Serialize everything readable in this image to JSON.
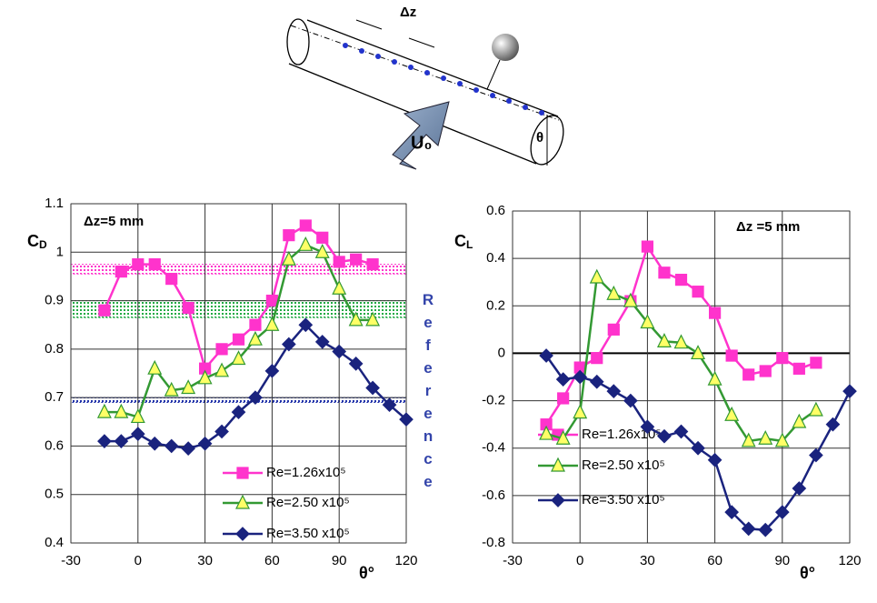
{
  "diagram": {
    "dz": "Δz",
    "velocity": "U₀",
    "angle": "θ"
  },
  "chart_data": [
    {
      "type": "line",
      "ylabel": {
        "main": "C",
        "sub": "D"
      },
      "xlabel": "θ°",
      "annotation": "Δz=5 mm",
      "side_note": "Reference",
      "xlim": [
        -30,
        120
      ],
      "xticks": [
        -30,
        0,
        30,
        60,
        90,
        120
      ],
      "ylim": [
        0.4,
        1.1
      ],
      "yticks": [
        0.4,
        0.5,
        0.6,
        0.7,
        0.8,
        0.9,
        1,
        1.1
      ],
      "grid": true,
      "bands": [
        {
          "color": "#ff33cc",
          "range": [
            0.955,
            0.975
          ]
        },
        {
          "color": "#22aa44",
          "range": [
            0.865,
            0.9
          ]
        },
        {
          "color": "#2233aa",
          "range": [
            0.69,
            0.7
          ]
        }
      ],
      "series": [
        {
          "name": "Re=1.26x10⁵",
          "color": "#ff33cc",
          "marker": "square",
          "marker_fill": "#ff33cc",
          "x": [
            -15,
            -7.5,
            0,
            7.5,
            15,
            22.5,
            30,
            37.5,
            45,
            52.5,
            60,
            67.5,
            75,
            82.5,
            90,
            97.5,
            105
          ],
          "values": [
            0.88,
            0.96,
            0.975,
            0.975,
            0.945,
            0.885,
            0.76,
            0.8,
            0.82,
            0.85,
            0.9,
            1.035,
            1.055,
            1.03,
            0.98,
            0.985,
            0.975
          ]
        },
        {
          "name": "Re=2.50 x10⁵",
          "color": "#339933",
          "marker": "triangle",
          "marker_fill": "#ffff66",
          "x": [
            -15,
            -7.5,
            0,
            7.5,
            15,
            22.5,
            30,
            37.5,
            45,
            52.5,
            60,
            67.5,
            75,
            82.5,
            90,
            97.5,
            105
          ],
          "values": [
            0.67,
            0.67,
            0.66,
            0.76,
            0.715,
            0.72,
            0.74,
            0.755,
            0.78,
            0.82,
            0.85,
            0.985,
            1.015,
            1.0,
            0.925,
            0.86,
            0.86
          ]
        },
        {
          "name": "Re=3.50 x10⁵",
          "color": "#1a237e",
          "marker": "diamond",
          "marker_fill": "#1a237e",
          "x": [
            -15,
            -7.5,
            0,
            7.5,
            15,
            22.5,
            30,
            37.5,
            45,
            52.5,
            60,
            67.5,
            75,
            82.5,
            90,
            97.5,
            105,
            112.5,
            120
          ],
          "values": [
            0.61,
            0.61,
            0.625,
            0.605,
            0.6,
            0.595,
            0.605,
            0.63,
            0.67,
            0.7,
            0.755,
            0.81,
            0.85,
            0.815,
            0.795,
            0.77,
            0.72,
            0.685,
            0.655
          ]
        }
      ]
    },
    {
      "type": "line",
      "ylabel": {
        "main": "C",
        "sub": "L"
      },
      "xlabel": "θ°",
      "annotation": "Δz =5 mm",
      "xlim": [
        -30,
        120
      ],
      "xticks": [
        -30,
        0,
        30,
        60,
        90,
        120
      ],
      "ylim": [
        -0.8,
        0.6
      ],
      "yticks": [
        -0.8,
        -0.6,
        -0.4,
        -0.2,
        0,
        0.2,
        0.4,
        0.6
      ],
      "grid": true,
      "series": [
        {
          "name": "Re=1.26x10⁵",
          "color": "#ff33cc",
          "marker": "square",
          "marker_fill": "#ff33cc",
          "x": [
            -15,
            -7.5,
            0,
            7.5,
            15,
            22.5,
            30,
            37.5,
            45,
            52.5,
            60,
            67.5,
            75,
            82.5,
            90,
            97.5,
            105
          ],
          "values": [
            -0.3,
            -0.19,
            -0.06,
            -0.02,
            0.1,
            0.22,
            0.45,
            0.34,
            0.31,
            0.26,
            0.17,
            -0.01,
            -0.09,
            -0.075,
            -0.02,
            -0.065,
            -0.04
          ]
        },
        {
          "name": "Re=2.50 x10⁵",
          "color": "#339933",
          "marker": "triangle",
          "marker_fill": "#ffff66",
          "x": [
            -15,
            -7.5,
            0,
            7.5,
            15,
            22.5,
            30,
            37.5,
            45,
            52.5,
            60,
            67.5,
            75,
            82.5,
            90,
            97.5,
            105
          ],
          "values": [
            -0.34,
            -0.36,
            -0.25,
            0.32,
            0.25,
            0.22,
            0.13,
            0.05,
            0.045,
            0,
            -0.11,
            -0.26,
            -0.37,
            -0.36,
            -0.37,
            -0.29,
            -0.24
          ]
        },
        {
          "name": "Re=3.50 x10⁵",
          "color": "#1a237e",
          "marker": "diamond",
          "marker_fill": "#1a237e",
          "x": [
            -15,
            -7.5,
            0,
            7.5,
            15,
            22.5,
            30,
            37.5,
            45,
            52.5,
            60,
            67.5,
            75,
            82.5,
            90,
            97.5,
            105,
            112.5,
            120
          ],
          "values": [
            -0.01,
            -0.11,
            -0.1,
            -0.12,
            -0.16,
            -0.2,
            -0.31,
            -0.35,
            -0.33,
            -0.4,
            -0.45,
            -0.67,
            -0.74,
            -0.745,
            -0.67,
            -0.57,
            -0.43,
            -0.3,
            -0.16
          ]
        }
      ]
    }
  ]
}
